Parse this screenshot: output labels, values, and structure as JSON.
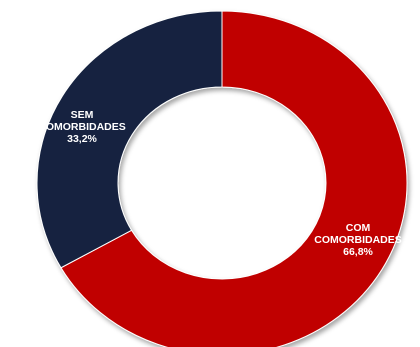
{
  "chart_data": {
    "type": "pie",
    "donut": true,
    "categories": [
      "COM COMORBIDADES",
      "SEM COMORBIDADES"
    ],
    "values": [
      66.8,
      33.2
    ],
    "slices": [
      {
        "label_lines": [
          "COM",
          "COMORBIDADES"
        ],
        "value_label": "66,8%",
        "value": 66.8,
        "color": "#C00000"
      },
      {
        "label_lines": [
          "SEM",
          "COMORBIDADES"
        ],
        "value_label": "33,2%",
        "value": 33.2,
        "color": "#14233F"
      }
    ],
    "legend": false
  }
}
